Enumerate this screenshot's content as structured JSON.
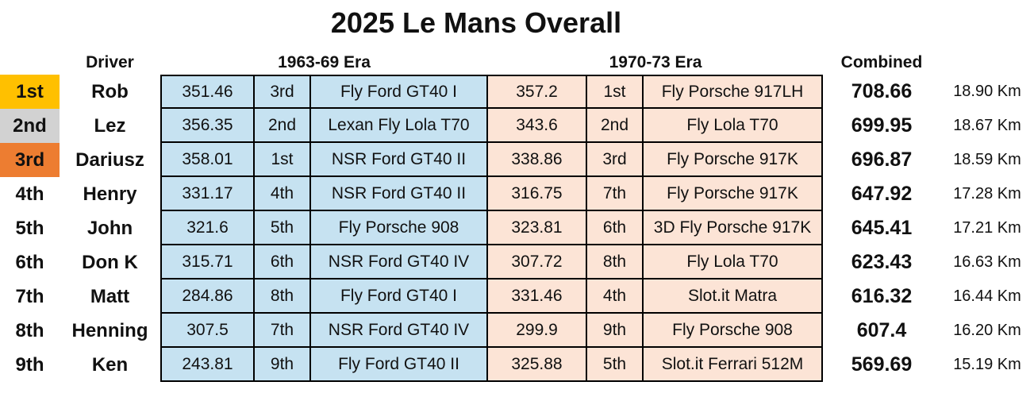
{
  "title": "2025 Le Mans Overall",
  "header": {
    "driver": "Driver",
    "era1": "1963-69 Era",
    "era2": "1970-73 Era",
    "combined": "Combined"
  },
  "colors": {
    "gold": "#FFC000",
    "silver": "#D2D2D2",
    "bronze": "#ED7D31",
    "era1_bg": "#C6E2F1",
    "era2_bg": "#FCE4D6"
  },
  "chart_data": {
    "type": "table",
    "title": "2025 Le Mans Overall",
    "column_groups": [
      "Driver",
      "1963-69 Era",
      "1970-73 Era",
      "Combined"
    ],
    "columns": [
      "rank",
      "driver",
      "era1_score",
      "era1_position",
      "era1_car",
      "era2_score",
      "era2_position",
      "era2_car",
      "combined_score",
      "combined_distance"
    ],
    "rows": [
      {
        "rank": "1st",
        "medal": "gold",
        "driver": "Rob",
        "era1_score": "351.46",
        "era1_position": "3rd",
        "era1_car": "Fly Ford GT40 I",
        "era2_score": "357.2",
        "era2_position": "1st",
        "era2_car": "Fly Porsche 917LH",
        "combined_score": "708.66",
        "combined_distance": "18.90 Km"
      },
      {
        "rank": "2nd",
        "medal": "silver",
        "driver": "Lez",
        "era1_score": "356.35",
        "era1_position": "2nd",
        "era1_car": "Lexan Fly Lola T70",
        "era2_score": "343.6",
        "era2_position": "2nd",
        "era2_car": "Fly Lola T70",
        "combined_score": "699.95",
        "combined_distance": "18.67 Km"
      },
      {
        "rank": "3rd",
        "medal": "bronze",
        "driver": "Dariusz",
        "era1_score": "358.01",
        "era1_position": "1st",
        "era1_car": "NSR Ford GT40 II",
        "era2_score": "338.86",
        "era2_position": "3rd",
        "era2_car": "Fly Porsche 917K",
        "combined_score": "696.87",
        "combined_distance": "18.59 Km"
      },
      {
        "rank": "4th",
        "medal": null,
        "driver": "Henry",
        "era1_score": "331.17",
        "era1_position": "4th",
        "era1_car": "NSR Ford GT40 II",
        "era2_score": "316.75",
        "era2_position": "7th",
        "era2_car": "Fly Porsche 917K",
        "combined_score": "647.92",
        "combined_distance": "17.28 Km"
      },
      {
        "rank": "5th",
        "medal": null,
        "driver": "John",
        "era1_score": "321.6",
        "era1_position": "5th",
        "era1_car": "Fly Porsche 908",
        "era2_score": "323.81",
        "era2_position": "6th",
        "era2_car": "3D Fly Porsche 917K",
        "combined_score": "645.41",
        "combined_distance": "17.21 Km"
      },
      {
        "rank": "6th",
        "medal": null,
        "driver": "Don K",
        "era1_score": "315.71",
        "era1_position": "6th",
        "era1_car": "NSR Ford GT40 IV",
        "era2_score": "307.72",
        "era2_position": "8th",
        "era2_car": "Fly Lola T70",
        "combined_score": "623.43",
        "combined_distance": "16.63 Km"
      },
      {
        "rank": "7th",
        "medal": null,
        "driver": "Matt",
        "era1_score": "284.86",
        "era1_position": "8th",
        "era1_car": "Fly Ford GT40 I",
        "era2_score": "331.46",
        "era2_position": "4th",
        "era2_car": "Slot.it Matra",
        "combined_score": "616.32",
        "combined_distance": "16.44 Km"
      },
      {
        "rank": "8th",
        "medal": null,
        "driver": "Henning",
        "era1_score": "307.5",
        "era1_position": "7th",
        "era1_car": "NSR Ford GT40 IV",
        "era2_score": "299.9",
        "era2_position": "9th",
        "era2_car": "Fly Porsche 908",
        "combined_score": "607.4",
        "combined_distance": "16.20 Km"
      },
      {
        "rank": "9th",
        "medal": null,
        "driver": "Ken",
        "era1_score": "243.81",
        "era1_position": "9th",
        "era1_car": "Fly Ford GT40 II",
        "era2_score": "325.88",
        "era2_position": "5th",
        "era2_car": "Slot.it Ferrari 512M",
        "combined_score": "569.69",
        "combined_distance": "15.19 Km"
      }
    ]
  }
}
